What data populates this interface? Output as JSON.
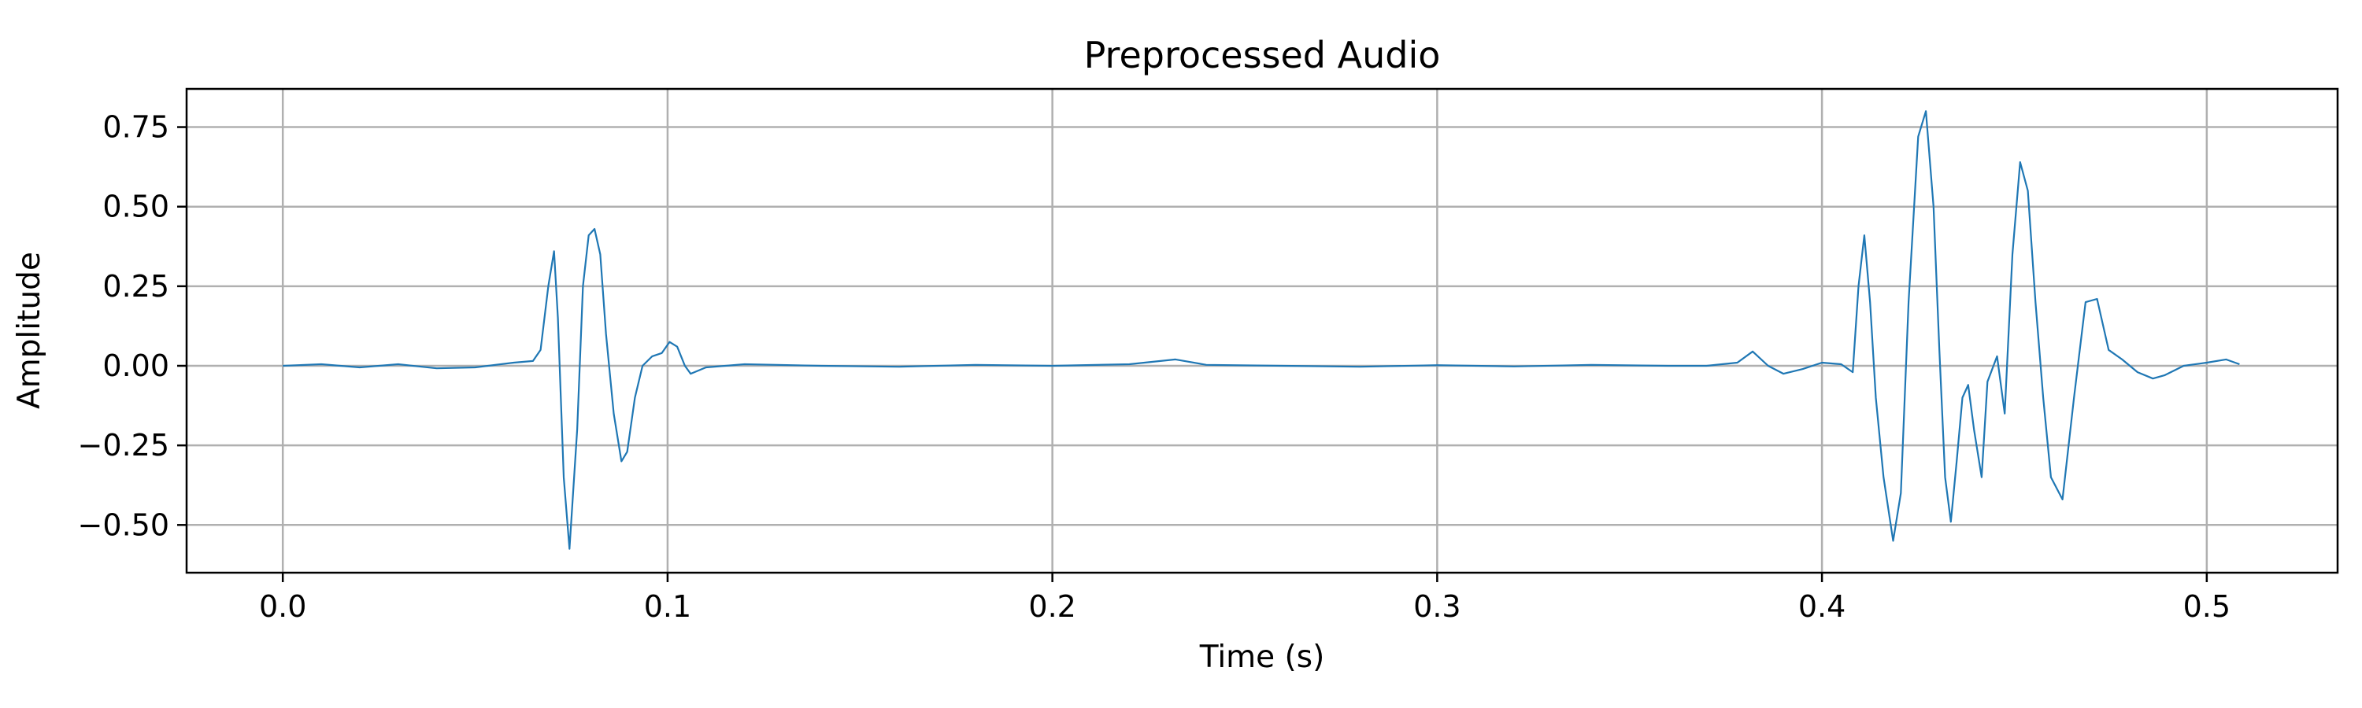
{
  "chart_data": {
    "type": "line",
    "title": "Preprocessed Audio",
    "xlabel": "Time (s)",
    "ylabel": "Amplitude",
    "xlim": [
      -0.025,
      0.534
    ],
    "ylim": [
      -0.65,
      0.87
    ],
    "x_ticks": [
      0.0,
      0.1,
      0.2,
      0.3,
      0.4,
      0.5
    ],
    "x_tick_labels": [
      "0.0",
      "0.1",
      "0.2",
      "0.3",
      "0.4",
      "0.5"
    ],
    "y_ticks": [
      0.75,
      0.5,
      0.25,
      0.0,
      -0.25,
      -0.5
    ],
    "y_tick_labels": [
      "0.75",
      "0.50",
      "0.25",
      "0.00",
      "−0.25",
      "−0.50"
    ],
    "grid": true,
    "legend": "none",
    "series": [
      {
        "color": "#1f77b4",
        "x": [
          0.0,
          0.01,
          0.02,
          0.03,
          0.04,
          0.05,
          0.06,
          0.065,
          0.067,
          0.069,
          0.0705,
          0.0715,
          0.073,
          0.0745,
          0.0765,
          0.078,
          0.0795,
          0.081,
          0.0825,
          0.084,
          0.086,
          0.088,
          0.0895,
          0.0915,
          0.0935,
          0.096,
          0.0985,
          0.1005,
          0.1025,
          0.1045,
          0.106,
          0.11,
          0.12,
          0.14,
          0.16,
          0.18,
          0.2,
          0.22,
          0.232,
          0.24,
          0.26,
          0.28,
          0.3,
          0.32,
          0.34,
          0.36,
          0.37,
          0.378,
          0.382,
          0.386,
          0.39,
          0.395,
          0.4,
          0.405,
          0.408,
          0.4095,
          0.411,
          0.4125,
          0.414,
          0.416,
          0.4185,
          0.4205,
          0.4225,
          0.425,
          0.427,
          0.429,
          0.4305,
          0.432,
          0.4335,
          0.435,
          0.4365,
          0.438,
          0.4395,
          0.4415,
          0.443,
          0.4455,
          0.4475,
          0.4495,
          0.4515,
          0.4535,
          0.4555,
          0.4575,
          0.4595,
          0.4625,
          0.4655,
          0.4685,
          0.4715,
          0.4745,
          0.478,
          0.482,
          0.486,
          0.489,
          0.494,
          0.5,
          0.505,
          0.5085
        ],
        "y": [
          0.0,
          0.005,
          -0.005,
          0.005,
          -0.008,
          -0.005,
          0.01,
          0.015,
          0.05,
          0.25,
          0.36,
          0.15,
          -0.35,
          -0.575,
          -0.2,
          0.25,
          0.41,
          0.43,
          0.35,
          0.1,
          -0.15,
          -0.3,
          -0.27,
          -0.1,
          0.0,
          0.03,
          0.04,
          0.075,
          0.06,
          0.0,
          -0.025,
          -0.005,
          0.005,
          0.0,
          -0.003,
          0.003,
          0.0,
          0.005,
          0.02,
          0.003,
          0.0,
          -0.003,
          0.002,
          -0.002,
          0.003,
          0.0,
          0.0,
          0.01,
          0.045,
          0.0,
          -0.025,
          -0.01,
          0.01,
          0.005,
          -0.02,
          0.25,
          0.41,
          0.2,
          -0.1,
          -0.35,
          -0.55,
          -0.4,
          0.2,
          0.72,
          0.8,
          0.5,
          0.05,
          -0.35,
          -0.49,
          -0.3,
          -0.1,
          -0.06,
          -0.2,
          -0.35,
          -0.05,
          0.03,
          -0.15,
          0.35,
          0.64,
          0.55,
          0.2,
          -0.1,
          -0.35,
          -0.42,
          -0.1,
          0.2,
          0.21,
          0.05,
          0.02,
          -0.02,
          -0.04,
          -0.03,
          0.0,
          0.01,
          0.02,
          0.005
        ]
      }
    ]
  }
}
